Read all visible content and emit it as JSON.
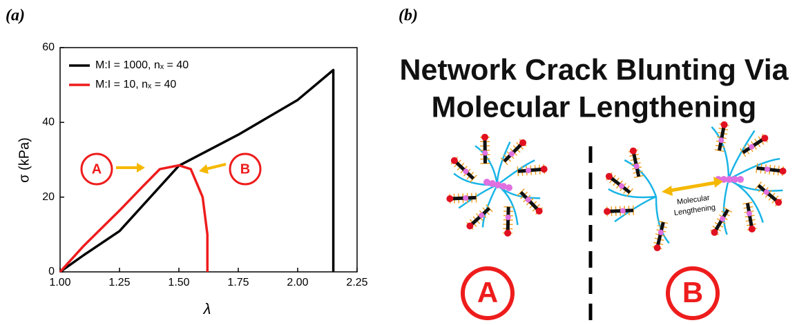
{
  "panel_labels": [
    "(a)",
    "(b)"
  ],
  "chart_data": {
    "type": "line",
    "xlabel": "λ",
    "ylabel": "σ (kPa)",
    "xlim": [
      1.0,
      2.25
    ],
    "xticks": [
      {
        "value": 1.0,
        "label": "1.00"
      },
      {
        "value": 1.25,
        "label": "1.25"
      },
      {
        "value": 1.5,
        "label": "1.50"
      },
      {
        "value": 1.75,
        "label": "1.75"
      },
      {
        "value": 2.0,
        "label": "2.00"
      },
      {
        "value": 2.25,
        "label": "2.25"
      }
    ],
    "ylim": [
      0,
      60
    ],
    "yticks": [
      0,
      20,
      40,
      60
    ],
    "series": [
      {
        "name": "M:I = 1000, nₓ = 40",
        "color": "#000000",
        "x": [
          1.0,
          1.1,
          1.25,
          1.5,
          1.75,
          2.0,
          2.15,
          2.15
        ],
        "values": [
          0,
          4.5,
          10.9,
          28.4,
          36.7,
          46,
          54,
          0
        ]
      },
      {
        "name": "M:I = 10, nₓ = 40",
        "color": "#ee1c1c",
        "x": [
          1.0,
          1.1,
          1.25,
          1.35,
          1.42,
          1.5,
          1.55,
          1.6,
          1.62,
          1.62
        ],
        "values": [
          0,
          7,
          16.4,
          23,
          27.5,
          28.5,
          27.5,
          20,
          10,
          0
        ]
      }
    ],
    "annotations": [
      "A",
      "B"
    ]
  },
  "diagram": {
    "title_lines": [
      "Network Crack Blunting Via",
      "Molecular Lengthening"
    ],
    "arrow_label_lines": [
      "Molecular",
      "Lengthening"
    ],
    "states": [
      "A",
      "B"
    ]
  }
}
